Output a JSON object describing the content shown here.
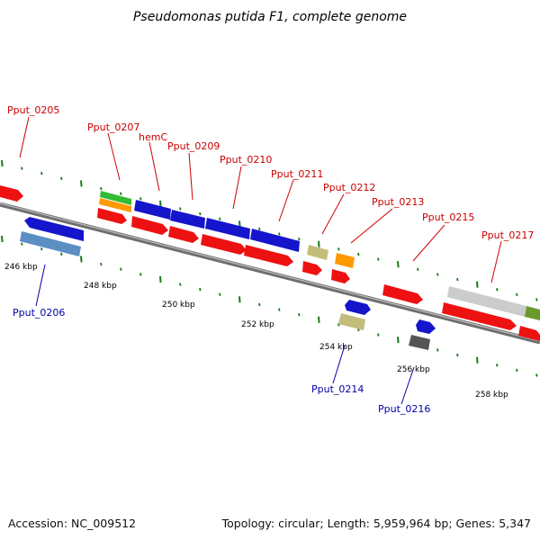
{
  "title": "Pseudomonas putida F1, complete genome",
  "footer": {
    "accession": "Accession: NC_009512",
    "topology": "Topology: circular; Length: 5,959,964 bp; Genes: 5,347"
  },
  "scale_labels": [
    "246 kbp",
    "248 kbp",
    "250 kbp",
    "252 kbp",
    "254 kbp",
    "256 kbp",
    "258 kbp"
  ],
  "genes": [
    {
      "name": "Pput_0205"
    },
    {
      "name": "Pput_0206"
    },
    {
      "name": "Pput_0207"
    },
    {
      "name": "hemC"
    },
    {
      "name": "Pput_0209"
    },
    {
      "name": "Pput_0210"
    },
    {
      "name": "Pput_0211"
    },
    {
      "name": "Pput_0212"
    },
    {
      "name": "Pput_0213"
    },
    {
      "name": "Pput_0214"
    },
    {
      "name": "Pput_0215"
    },
    {
      "name": "Pput_0216"
    },
    {
      "name": "Pput_0217"
    }
  ],
  "colors": {
    "cds": "#ee1111",
    "blue_feature": "#1515cc",
    "steel_feature": "#5b8fc4",
    "green_feature": "#33bb33",
    "orange_feature": "#ff9900",
    "khaki_feature": "#c2bd7a",
    "grey_feature": "#cccccc",
    "olive_feature": "#6b9a2a",
    "dark_feature": "#555555",
    "backbone": "#777777",
    "tick": "#1a7a1a",
    "label_forward": "#cc0000",
    "label_reverse": "#0000aa"
  }
}
